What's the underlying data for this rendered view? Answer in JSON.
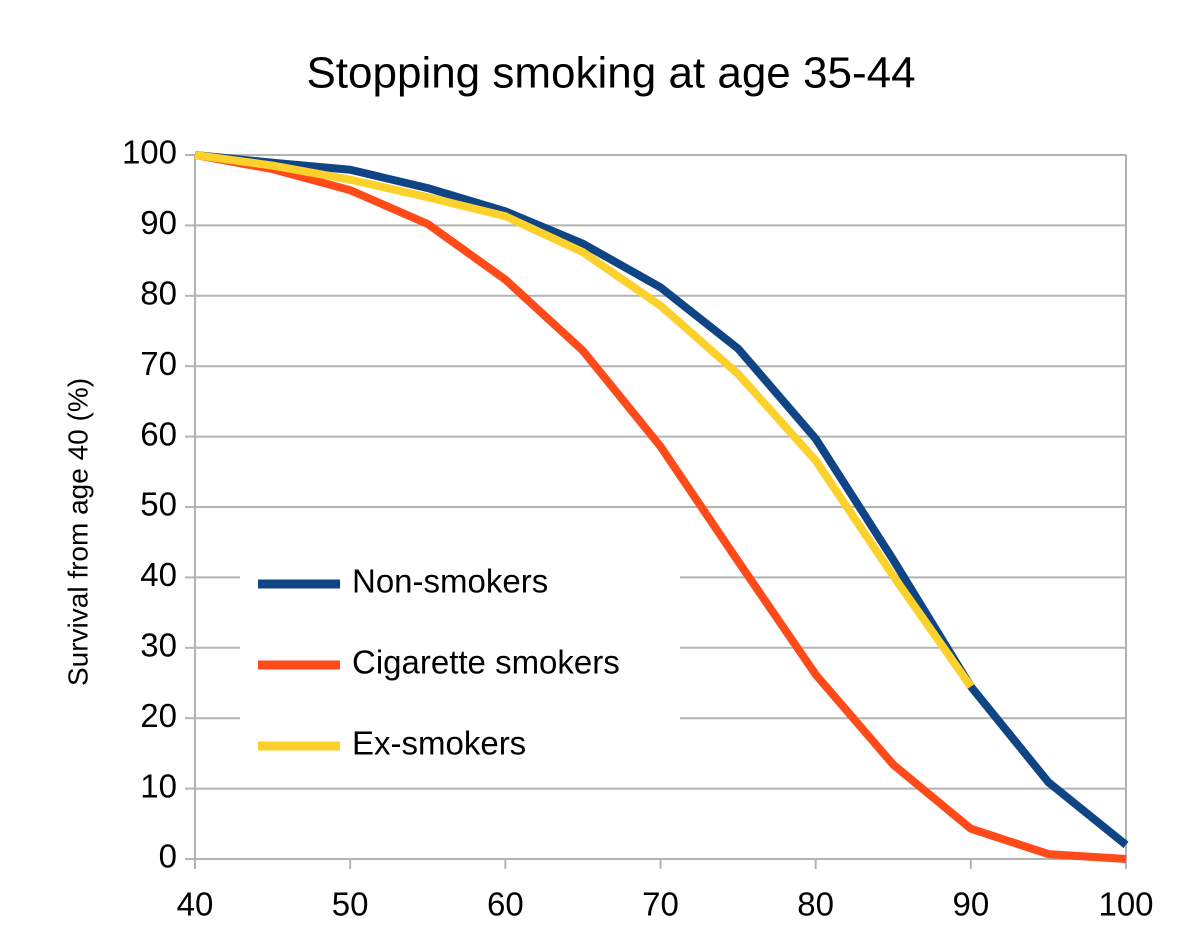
{
  "chart_data": {
    "type": "line",
    "title": "Stopping smoking at age 35-44",
    "y_label": "Survival from age 40 (%)",
    "x": [
      40,
      45,
      50,
      55,
      60,
      65,
      70,
      75,
      80,
      85,
      90,
      95,
      100
    ],
    "series": [
      {
        "name": "Non-smokers",
        "color": "#0f4584",
        "values": [
          100,
          98.9,
          97.9,
          95.3,
          92,
          87.4,
          81.2,
          72.5,
          59.7,
          42.5,
          24.5,
          10.9,
          2
        ]
      },
      {
        "name": "Cigarette smokers",
        "color": "#ff4a1a",
        "values": [
          100,
          98,
          95,
          90.2,
          82.3,
          72.2,
          58.6,
          42.3,
          26.2,
          13.4,
          4.3,
          0.7,
          0
        ]
      },
      {
        "name": "Ex-smokers",
        "color": "#fdd12c",
        "values": [
          100,
          98.5,
          96.5,
          94,
          91.3,
          86.2,
          78.6,
          68.9,
          56.6,
          40.2,
          24.5,
          null,
          null
        ]
      }
    ],
    "xlim": [
      40,
      100
    ],
    "xticks": [
      40,
      50,
      60,
      70,
      80,
      90,
      100
    ],
    "ylim": [
      0,
      100
    ],
    "yticks": [
      0,
      10,
      20,
      30,
      40,
      50,
      60,
      70,
      80,
      90,
      100
    ],
    "grid": true,
    "legend": "lower left"
  }
}
